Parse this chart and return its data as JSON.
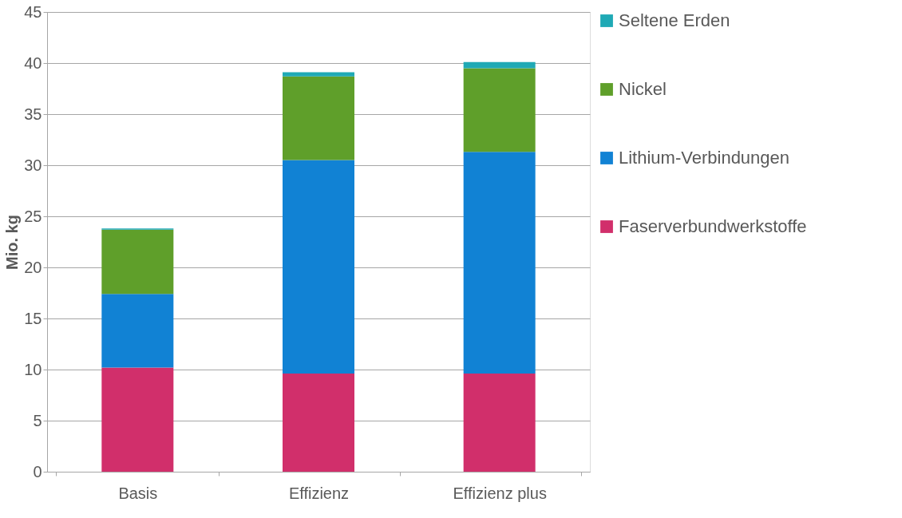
{
  "chart_data": {
    "type": "bar",
    "stacked": true,
    "ylabel": "Mio. kg",
    "categories": [
      "Basis",
      "Effizienz",
      "Effizienz plus"
    ],
    "series": [
      {
        "name": "Faserverbundwerkstoffe",
        "color": "#d12f6b",
        "values": [
          10.2,
          9.6,
          9.6
        ]
      },
      {
        "name": "Lithium-Verbindungen",
        "color": "#1182d4",
        "values": [
          7.2,
          20.9,
          21.7
        ]
      },
      {
        "name": "Nickel",
        "color": "#5f9f2a",
        "values": [
          6.3,
          8.2,
          8.2
        ]
      },
      {
        "name": "Seltene Erden",
        "color": "#1fa9b5",
        "values": [
          0.1,
          0.4,
          0.6
        ]
      }
    ],
    "ylim": [
      0,
      45
    ],
    "yticks": [
      0,
      5,
      10,
      15,
      20,
      25,
      30,
      35,
      40,
      45
    ],
    "grid": "y",
    "legend": "right"
  }
}
